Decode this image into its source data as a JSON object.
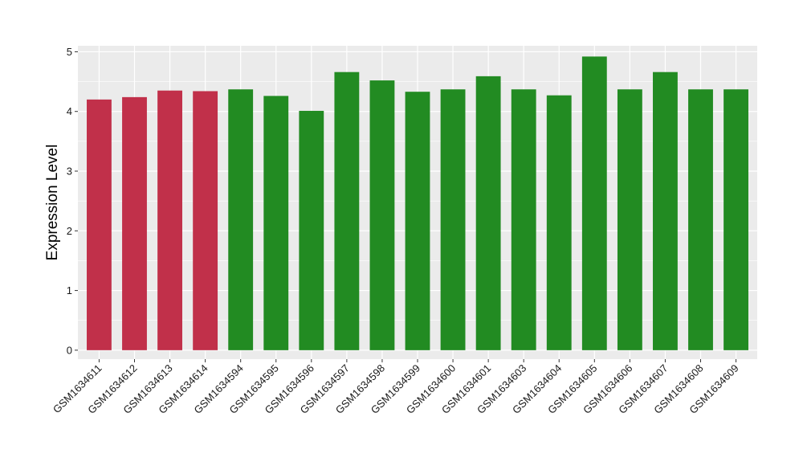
{
  "chart_data": {
    "type": "bar",
    "title": "",
    "xlabel": "",
    "ylabel": "Expression Level",
    "ylim": [
      -0.15,
      5.1
    ],
    "yticks": [
      0,
      1,
      2,
      3,
      4,
      5
    ],
    "grid": true,
    "legend": "none",
    "categories": [
      "GSM1634611",
      "GSM1634612",
      "GSM1634613",
      "GSM1634614",
      "GSM1634594",
      "GSM1634595",
      "GSM1634596",
      "GSM1634597",
      "GSM1634598",
      "GSM1634599",
      "GSM1634600",
      "GSM1634601",
      "GSM1634603",
      "GSM1634604",
      "GSM1634605",
      "GSM1634606",
      "GSM1634607",
      "GSM1634608",
      "GSM1634609"
    ],
    "values": [
      4.2,
      4.24,
      4.35,
      4.34,
      4.37,
      4.26,
      4.01,
      4.66,
      4.52,
      4.33,
      4.37,
      4.59,
      4.37,
      4.27,
      4.92,
      4.37,
      4.66,
      4.37,
      4.37
    ],
    "groups": [
      "a",
      "a",
      "a",
      "a",
      "b",
      "b",
      "b",
      "b",
      "b",
      "b",
      "b",
      "b",
      "b",
      "b",
      "b",
      "b",
      "b",
      "b",
      "b"
    ],
    "colors": {
      "a": "#C1304A",
      "b": "#228B22"
    },
    "panel_background": "#EBEBEB",
    "grid_color": "#FFFFFF"
  }
}
